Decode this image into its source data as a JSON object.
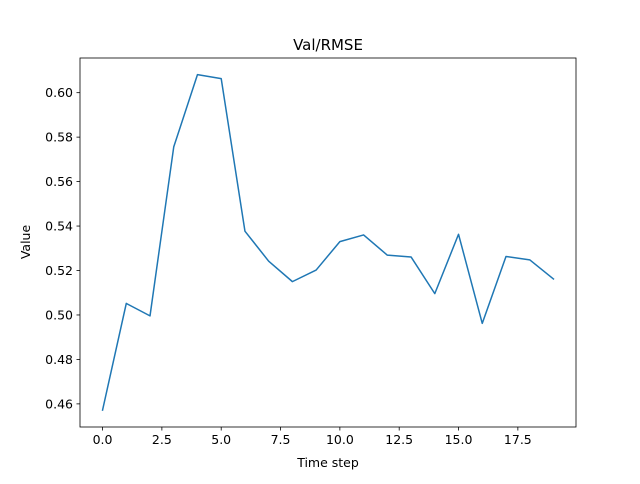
{
  "chart_data": {
    "type": "line",
    "title": "Val/RMSE",
    "xlabel": "Time step",
    "ylabel": "Value",
    "xlim": [
      -0.95,
      19.95
    ],
    "ylim": [
      0.4496,
      0.6156
    ],
    "x_ticks": [
      0.0,
      2.5,
      5.0,
      7.5,
      10.0,
      12.5,
      15.0,
      17.5
    ],
    "x_tick_labels": [
      "0.0",
      "2.5",
      "5.0",
      "7.5",
      "10.0",
      "12.5",
      "15.0",
      "17.5"
    ],
    "y_ticks": [
      0.46,
      0.48,
      0.5,
      0.52,
      0.54,
      0.56,
      0.58,
      0.6
    ],
    "y_tick_labels": [
      "0.46",
      "0.48",
      "0.50",
      "0.52",
      "0.54",
      "0.56",
      "0.58",
      "0.60"
    ],
    "grid": false,
    "line_color": "#1f77b4",
    "series": [
      {
        "x": [
          0,
          1,
          2,
          3,
          4,
          5,
          6,
          7,
          8,
          9,
          10,
          11,
          12,
          13,
          14,
          15,
          16,
          17,
          18,
          19
        ],
        "values": [
          0.4572,
          0.5052,
          0.4996,
          0.5756,
          0.6081,
          0.6063,
          0.5377,
          0.5242,
          0.515,
          0.5202,
          0.533,
          0.536,
          0.5269,
          0.5261,
          0.5096,
          0.5363,
          0.4962,
          0.5263,
          0.5248,
          0.5162
        ]
      }
    ]
  }
}
